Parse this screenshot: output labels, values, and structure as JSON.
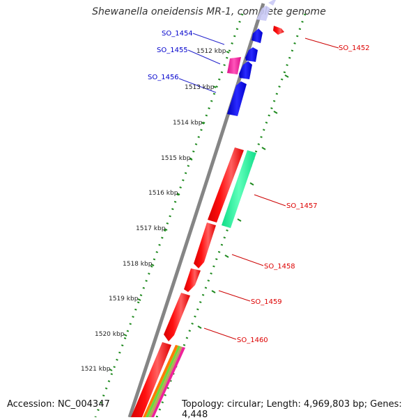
{
  "title": "Shewanella oneidensis MR-1, complete genome",
  "footer": {
    "accession": "Accession: NC_004347",
    "summary": "Topology: circular; Length: 4,969,803 bp; Genes: 4,448"
  },
  "colors": {
    "backbone": "#8a8a8a",
    "tick_track": "#1f8a1f",
    "forward_gene": "#ff1a1a",
    "reverse_gene": "#1a1aee",
    "label_forward": "#dd0000",
    "label_reverse": "#0000cc",
    "rna": "#22ee99",
    "pseudo": "#ee2299"
  },
  "genome_map": {
    "kbp_labels": [
      "1512 kbp",
      "1513 kbp",
      "1514 kbp",
      "1515 kbp",
      "1516 kbp",
      "1517 kbp",
      "1518 kbp",
      "1519 kbp",
      "1520 kbp",
      "1521 kbp"
    ],
    "gene_labels": {
      "left": [
        "SO_1454",
        "SO_1455",
        "SO_1456"
      ],
      "right": [
        "SO_1452",
        "SO_1457",
        "SO_1458",
        "SO_1459",
        "SO_1460"
      ]
    }
  }
}
